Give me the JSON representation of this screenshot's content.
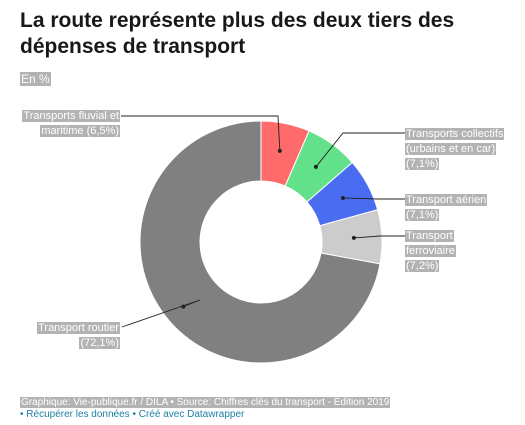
{
  "title": "La route représente plus des deux tiers des dépenses de transport",
  "subtitle": "En %",
  "chart_data": {
    "type": "pie",
    "variant": "donut",
    "slices": [
      {
        "label": "Transports fluvial et maritime (6,5%)",
        "value": 6.5,
        "color": "#ff6b6b"
      },
      {
        "label": "Transports collectifs (urbains et en car) (7,1%)",
        "value": 7.1,
        "color": "#63e18a"
      },
      {
        "label": "Transport aérien (7,1%)",
        "value": 7.1,
        "color": "#4a6cf0"
      },
      {
        "label": "Transport ferroviaire (7,2%)",
        "value": 7.2,
        "color": "#cccccc"
      },
      {
        "label": "Transport routier (72,1%)",
        "value": 72.1,
        "color": "#808080"
      }
    ]
  },
  "footer": {
    "source": "Graphique: Vie-publique.fr / DILA • Source: Chiffres clés du transport - Édition 2019",
    "get_data": "Récupérer les données",
    "created_with": "Créé avec Datawrapper"
  }
}
